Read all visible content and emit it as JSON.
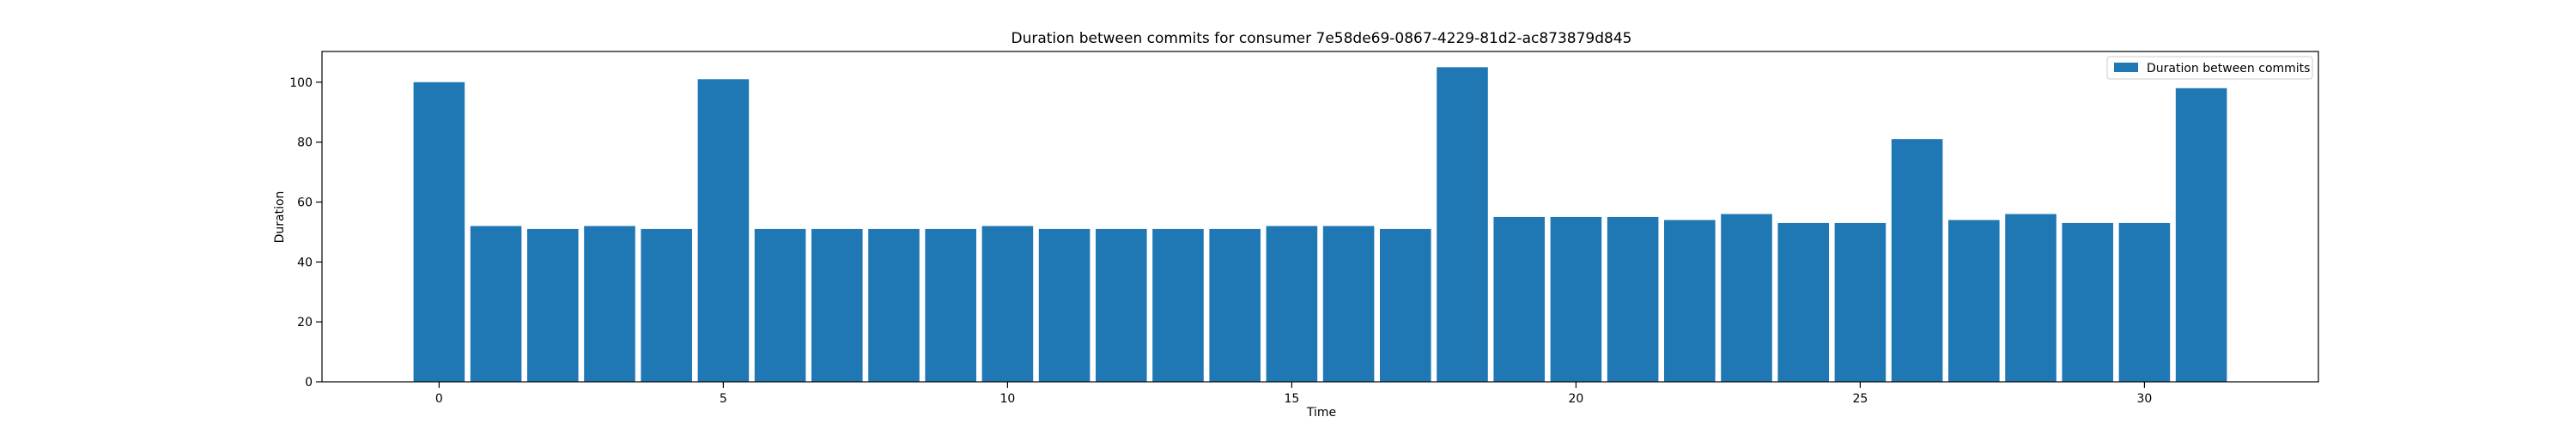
{
  "chart_data": {
    "type": "bar",
    "title": "Duration between commits for consumer 7e58de69-0867-4229-81d2-ac873879d845",
    "xlabel": "Time",
    "ylabel": "Duration",
    "x": [
      0,
      1,
      2,
      3,
      4,
      5,
      6,
      7,
      8,
      9,
      10,
      11,
      12,
      13,
      14,
      15,
      16,
      17,
      18,
      19,
      20,
      21,
      22,
      23,
      24,
      25,
      26,
      27,
      28,
      29,
      30,
      31
    ],
    "series": [
      {
        "name": "Duration between commits",
        "color": "#1f77b4",
        "values": [
          100,
          52,
          51,
          52,
          51,
          101,
          51,
          51,
          51,
          51,
          52,
          51,
          51,
          51,
          51,
          52,
          52,
          51,
          105,
          55,
          55,
          55,
          54,
          56,
          53,
          53,
          81,
          54,
          56,
          53,
          53,
          98
        ]
      }
    ],
    "xlim": [
      -2.06,
      33.06
    ],
    "ylim": [
      0,
      110.25
    ],
    "xticks": [
      0,
      5,
      10,
      15,
      20,
      25,
      30
    ],
    "yticks": [
      0,
      20,
      40,
      60,
      80,
      100
    ],
    "bar_width": 0.9,
    "grid": false,
    "legend_position": "top-right"
  }
}
